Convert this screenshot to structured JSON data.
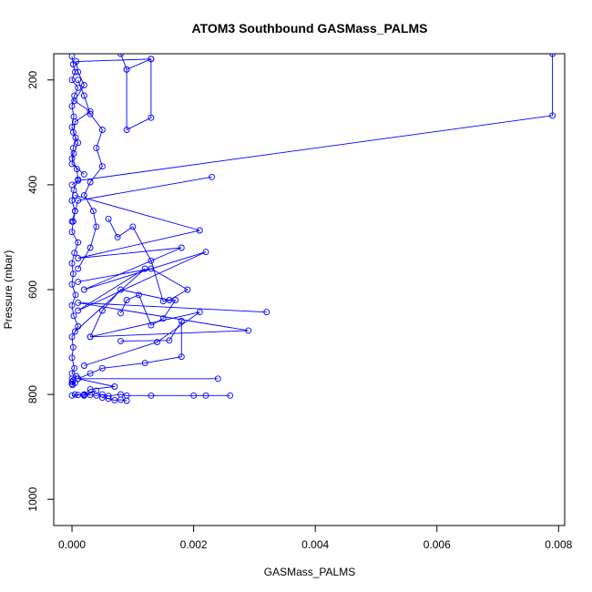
{
  "chart_data": {
    "type": "line",
    "title": "ATOM3 Southbound GASMass_PALMS",
    "xlabel": "GASMass_PALMS",
    "ylabel": "Pressure (mbar)",
    "xlim": [
      -0.0003,
      0.0081
    ],
    "ylim": [
      1050,
      150
    ],
    "y_reversed": true,
    "xticks": [
      "0.000",
      "0.002",
      "0.004",
      "0.006",
      "0.008"
    ],
    "xtick_values": [
      0,
      0.002,
      0.004,
      0.006,
      0.008
    ],
    "yticks": [
      "200",
      "400",
      "600",
      "800",
      "1000"
    ],
    "ytick_values": [
      200,
      400,
      600,
      800,
      1000
    ],
    "grid": false,
    "color": "#0000ff",
    "marker": "open-circle",
    "series": [
      {
        "x": [
          0.0,
          2e-05,
          5e-05,
          0.0,
          0.0001,
          4e-05,
          0.0,
          3e-05,
          0.0,
          6e-05,
          2e-05,
          0.0,
          8e-05,
          0.0001,
          3e-05,
          0.0,
          5e-05,
          2e-05,
          0.0,
          0.0001,
          4e-05,
          0.0,
          2e-05,
          0.0,
          6e-05,
          0.0,
          3e-05,
          0.0001,
          0.0,
          2e-05,
          0.0,
          4e-05,
          0.0,
          7e-05,
          0.0,
          2e-05,
          0.0,
          5e-05,
          0.0,
          1e-05
        ],
        "y": [
          155,
          170,
          185,
          200,
          215,
          230,
          250,
          270,
          290,
          310,
          330,
          350,
          370,
          390,
          410,
          430,
          450,
          470,
          490,
          510,
          530,
          550,
          570,
          590,
          610,
          630,
          650,
          670,
          690,
          710,
          730,
          750,
          760,
          765,
          770,
          773,
          776,
          778,
          780,
          782
        ]
      },
      {
        "x": [
          0.0008,
          0.0009,
          0.0013,
          7e-05,
          0.0001,
          0.0002,
          4e-05,
          0.0003,
          5e-05,
          2e-05,
          0.0001,
          3e-05,
          0.0,
          0.0002
        ],
        "y": [
          150,
          180,
          160,
          165,
          185,
          210,
          240,
          260,
          280,
          300,
          320,
          340,
          360,
          380
        ]
      },
      {
        "x": [
          0.0079,
          0.0079,
          0.0001,
          0.0
        ],
        "y": [
          150,
          268,
          392,
          400
        ]
      },
      {
        "x": [
          0.0023,
          0.0001,
          5e-05,
          0.0
        ],
        "y": [
          385,
          430,
          450,
          470
        ]
      },
      {
        "x": [
          0.0001,
          0.0002,
          0.0003,
          0.0005,
          0.0004,
          0.0005,
          0.0003,
          0.0002,
          0.00035,
          0.0004,
          0.0003,
          0.0001
        ],
        "y": [
          200,
          230,
          265,
          295,
          330,
          365,
          395,
          420,
          450,
          480,
          520,
          560
        ]
      },
      {
        "x": [
          0.0013,
          0.0013,
          0.0009,
          0.0009
        ],
        "y": [
          160,
          272,
          295,
          180
        ]
      },
      {
        "x": [
          5e-05,
          0.0021,
          0.0001,
          0.0018,
          0.0002,
          0.0022,
          0.0001,
          0.0012,
          5e-05
        ],
        "y": [
          420,
          487,
          540,
          520,
          600,
          528,
          640,
          560,
          680
        ]
      },
      {
        "x": [
          0.0006,
          0.00075,
          0.001,
          0.0013,
          0.0015,
          0.0017,
          0.0015,
          0.0013,
          0.0011,
          0.0009,
          0.0008
        ],
        "y": [
          465,
          500,
          480,
          545,
          622,
          620,
          655,
          668,
          610,
          620,
          645
        ]
      },
      {
        "x": [
          0.0001,
          0.0013,
          0.0019,
          0.0016,
          0.0008,
          0.0005,
          0.0003
        ],
        "y": [
          585,
          560,
          600,
          620,
          600,
          640,
          690
        ]
      },
      {
        "x": [
          0.0032,
          0.0001,
          0.0029,
          0.0003,
          0.0021,
          0.0014,
          0.0002
        ],
        "y": [
          643,
          625,
          678,
          690,
          643,
          700,
          745
        ]
      },
      {
        "x": [
          0.0008,
          0.0016,
          0.0018,
          0.0018,
          0.0012,
          0.0005,
          0.0003,
          0.0001
        ],
        "y": [
          698,
          697,
          660,
          728,
          740,
          750,
          760,
          770
        ]
      },
      {
        "x": [
          0.0024,
          0.0001,
          0.0007,
          0.0003,
          0.0002,
          0.0004,
          0.0002,
          5e-05
        ],
        "y": [
          770,
          770,
          785,
          790,
          800,
          793,
          802,
          800
        ]
      },
      {
        "x": [
          0.0026,
          0.0022,
          0.002,
          0.0013,
          0.0009,
          0.0008,
          0.0006,
          0.0005,
          0.0004,
          0.0003,
          0.0002,
          0.0001,
          0.0
        ],
        "y": [
          802,
          802,
          802,
          802,
          802,
          800,
          803,
          800,
          802,
          801,
          801,
          801,
          802
        ]
      },
      {
        "x": [
          0.0009,
          0.0008,
          0.0007,
          0.0006,
          0.0005
        ],
        "y": [
          812,
          810,
          811,
          808,
          806
        ]
      }
    ]
  }
}
